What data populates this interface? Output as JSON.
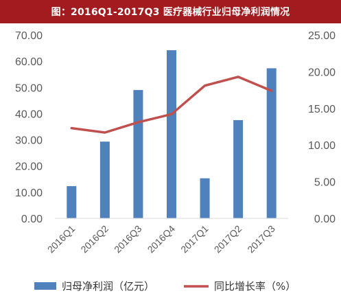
{
  "title": "图：2016Q1-2017Q3 医疗器械行业归母净利润情况",
  "chart_data": {
    "type": "bar",
    "categories": [
      "2016Q1",
      "2016Q2",
      "2016Q3",
      "2016Q4",
      "2017Q1",
      "2017Q2",
      "2017Q3"
    ],
    "series": [
      {
        "name": "归母净利润（亿元）",
        "type": "bar",
        "axis": "left",
        "color": "#4f81bd",
        "values": [
          12.3,
          29.3,
          49.0,
          64.2,
          15.3,
          37.5,
          57.3
        ]
      },
      {
        "name": "同比增长率（%）",
        "type": "line",
        "axis": "right",
        "color": "#c0504d",
        "values": [
          12.3,
          11.7,
          13.1,
          14.2,
          18.1,
          19.3,
          17.4
        ]
      }
    ],
    "y_left": {
      "ylim": [
        0,
        70
      ],
      "ticks": [
        "0.00",
        "10.00",
        "20.00",
        "30.00",
        "40.00",
        "50.00",
        "60.00",
        "70.00"
      ]
    },
    "y_right": {
      "ylim": [
        0,
        25
      ],
      "ticks": [
        "0.00",
        "5.00",
        "10.00",
        "15.00",
        "20.00",
        "25.00"
      ]
    },
    "grid": false,
    "legend_position": "bottom"
  }
}
